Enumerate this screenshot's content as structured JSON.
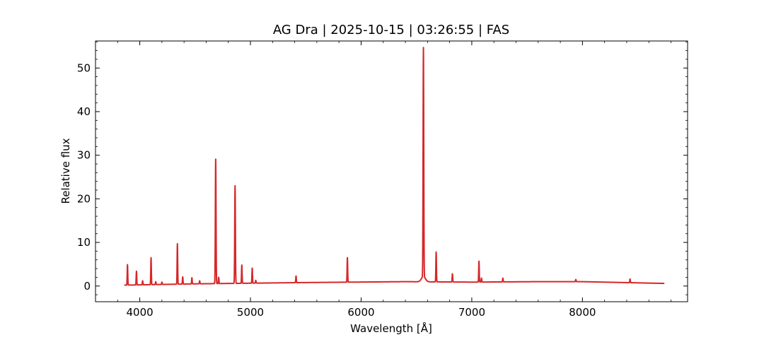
{
  "chart_data": {
    "type": "line",
    "title": "AG Dra | 2025-10-15 | 03:26:55 | FAS",
    "xlabel": "Wavelength [Å]",
    "ylabel": "Relative flux",
    "xlim": [
      3600,
      8950
    ],
    "ylim": [
      -3.6,
      56.2
    ],
    "x_ticks": [
      4000,
      5000,
      6000,
      7000,
      8000
    ],
    "x_tick_labels": [
      "4000",
      "5000",
      "6000",
      "7000",
      "8000"
    ],
    "y_ticks": [
      0,
      10,
      20,
      30,
      40,
      50
    ],
    "y_tick_labels": [
      "0",
      "10",
      "20",
      "30",
      "40",
      "50"
    ],
    "grid": false,
    "legend": "none",
    "series": [
      {
        "color": "#d62728",
        "wavelength_range": [
          3860,
          8740
        ],
        "continuum": [
          [
            3860,
            0.2
          ],
          [
            4500,
            0.5
          ],
          [
            5500,
            0.8
          ],
          [
            6400,
            1.0
          ],
          [
            7000,
            0.9
          ],
          [
            7600,
            1.0
          ],
          [
            8000,
            1.0
          ],
          [
            8740,
            0.6
          ]
        ],
        "lines": [
          {
            "x": 3889,
            "peak": 4.9
          },
          {
            "x": 3970,
            "peak": 3.4
          },
          {
            "x": 4026,
            "peak": 1.2
          },
          {
            "x": 4102,
            "peak": 6.5
          },
          {
            "x": 4144,
            "peak": 1.0
          },
          {
            "x": 4200,
            "peak": 0.9
          },
          {
            "x": 4340,
            "peak": 9.7
          },
          {
            "x": 4388,
            "peak": 2.1
          },
          {
            "x": 4471,
            "peak": 1.9
          },
          {
            "x": 4541,
            "peak": 1.2
          },
          {
            "x": 4686,
            "peak": 29.1
          },
          {
            "x": 4713,
            "peak": 2.0
          },
          {
            "x": 4861,
            "peak": 23.0
          },
          {
            "x": 4922,
            "peak": 4.8
          },
          {
            "x": 5016,
            "peak": 4.1
          },
          {
            "x": 5048,
            "peak": 1.3
          },
          {
            "x": 5412,
            "peak": 2.3
          },
          {
            "x": 5876,
            "peak": 6.5
          },
          {
            "x": 6563,
            "peak": 53.5
          },
          {
            "x": 6678,
            "peak": 7.8
          },
          {
            "x": 6825,
            "peak": 2.8
          },
          {
            "x": 7065,
            "peak": 5.7
          },
          {
            "x": 7088,
            "peak": 1.8
          },
          {
            "x": 7281,
            "peak": 1.8
          },
          {
            "x": 7940,
            "peak": 1.5
          },
          {
            "x": 8430,
            "peak": 1.6
          }
        ]
      }
    ]
  }
}
